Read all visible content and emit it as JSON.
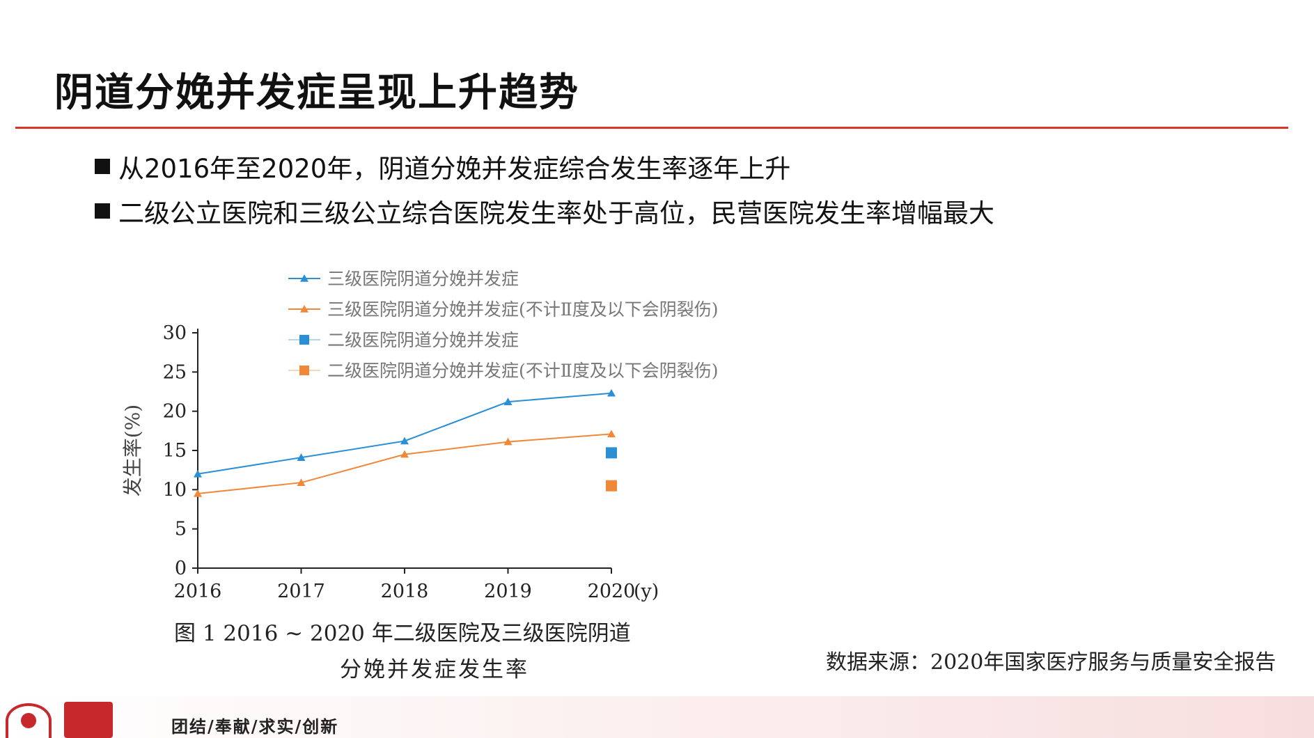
{
  "slide": {
    "title": "阴道分娩并发症呈现上升趋势",
    "bullets": [
      "从2016年至2020年，阴道分娩并发症综合发生率逐年上升",
      "二级公立医院和三级公立综合医院发生率处于高位，民营医院发生率增幅最大"
    ],
    "caption_line1": "图 1    2016 ~ 2020 年二级医院及三级医院阴道",
    "caption_line2": "分娩并发症发生率",
    "source": "数据来源：2020年国家医疗服务与质量安全报告",
    "motto": "团结/奉献/求实/创新"
  },
  "colors": {
    "accent_rule": "#d9342b",
    "series_blue": "#2b8fd6",
    "series_orange": "#f0883a",
    "logo_red": "#c7282c"
  },
  "icons": [
    "hospital-emblem-icon",
    "hospital-logo-icon"
  ],
  "chart_data": {
    "type": "line",
    "x": [
      2016,
      2017,
      2018,
      2019,
      2020
    ],
    "x_unit": "(y)",
    "ylabel": "发生率(%)",
    "ylim": [
      0,
      30
    ],
    "yticks": [
      0,
      5,
      10,
      15,
      20,
      25,
      30
    ],
    "legend_position": "top",
    "series": [
      {
        "name": "三级医院阴道分娩并发症",
        "marker": "triangle",
        "color": "#2b8fd6",
        "values": [
          12.0,
          14.1,
          16.2,
          21.2,
          22.3
        ]
      },
      {
        "name": "三级医院阴道分娩并发症(不计Ⅱ度及以下会阴裂伤)",
        "marker": "triangle",
        "color": "#f0883a",
        "values": [
          9.5,
          10.9,
          14.5,
          16.1,
          17.1
        ]
      },
      {
        "name": "二级医院阴道分娩并发症",
        "marker": "square",
        "color": "#2b8fd6",
        "values": [
          null,
          null,
          null,
          null,
          14.7
        ]
      },
      {
        "name": "二级医院阴道分娩并发症(不计Ⅱ度及以下会阴裂伤)",
        "marker": "square",
        "color": "#f0883a",
        "values": [
          null,
          null,
          null,
          null,
          10.5
        ]
      }
    ]
  }
}
